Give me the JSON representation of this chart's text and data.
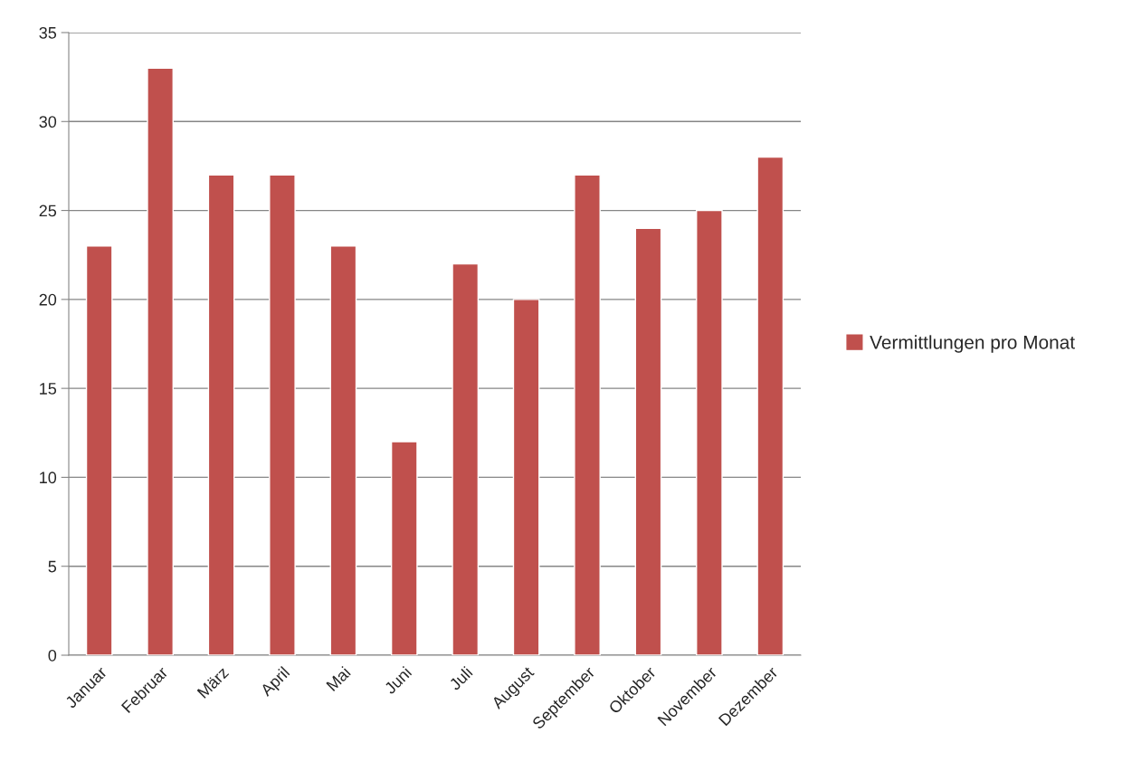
{
  "chart_data": {
    "type": "bar",
    "categories": [
      "Januar",
      "Februar",
      "März",
      "April",
      "Mai",
      "Juni",
      "Juli",
      "August",
      "September",
      "Oktober",
      "November",
      "Dezember"
    ],
    "series": [
      {
        "name": "Vermittlungen pro Monat",
        "color": "#c0504d",
        "values": [
          23,
          33,
          27,
          27,
          23,
          12,
          22,
          20,
          27,
          24,
          25,
          28
        ]
      }
    ],
    "ylim": [
      0,
      35
    ],
    "yticks": [
      0,
      5,
      10,
      15,
      20,
      25,
      30,
      35
    ],
    "grid": "y",
    "legend": "right"
  }
}
